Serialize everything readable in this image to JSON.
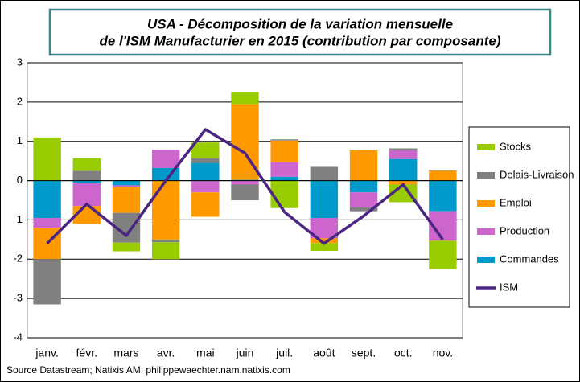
{
  "chart_data": {
    "type": "bar",
    "title": [
      "USA - Décomposition  de la variation  mensuelle",
      "de l'ISM  Manufacturier en  2015 (contribution  par composante)"
    ],
    "categories": [
      "janv.",
      "févr.",
      "mars",
      "avr.",
      "mai",
      "juin",
      "juil.",
      "août",
      "sept.",
      "oct.",
      "nov."
    ],
    "series": [
      {
        "name": "Commandes",
        "color": "#0099cc",
        "values": [
          -0.95,
          -0.05,
          -0.12,
          0.32,
          0.45,
          0.02,
          0.1,
          -0.95,
          -0.3,
          0.55,
          -0.78
        ]
      },
      {
        "name": "Production",
        "color": "#cc66cc",
        "values": [
          -0.25,
          -0.6,
          -0.05,
          0.47,
          -0.3,
          -0.1,
          0.37,
          -0.52,
          -0.38,
          0.22,
          -0.75
        ]
      },
      {
        "name": "Emploi",
        "color": "#ff9900",
        "values": [
          -0.8,
          -0.45,
          -0.65,
          -1.5,
          -0.62,
          1.93,
          0.55,
          -0.12,
          0.77,
          -0.1,
          0.25
        ]
      },
      {
        "name": "Delais-Livraison",
        "color": "#808080",
        "values": [
          -1.15,
          0.25,
          -0.76,
          -0.07,
          0.12,
          -0.4,
          0.03,
          0.35,
          -0.1,
          0.05,
          0.02
        ]
      },
      {
        "name": "Stocks",
        "color": "#99cc00",
        "values": [
          1.1,
          0.32,
          -0.22,
          -0.43,
          0.4,
          0.3,
          -0.7,
          -0.2,
          0,
          -0.45,
          -0.72
        ]
      },
      {
        "name": "ISM",
        "color": "#4b2582",
        "type": "line",
        "values": [
          -1.6,
          -0.6,
          -1.4,
          0,
          1.3,
          0.7,
          -0.8,
          -1.6,
          -0.9,
          -0.1,
          -1.5
        ]
      }
    ],
    "ylim": [
      -4,
      3
    ],
    "yticks": [
      -4,
      -3,
      -2,
      -1,
      0,
      1,
      2,
      3
    ],
    "grid": true,
    "legend": "right",
    "source": "Source Datastream; Natixis AM; philippewaechter.nam.natixis.com"
  }
}
